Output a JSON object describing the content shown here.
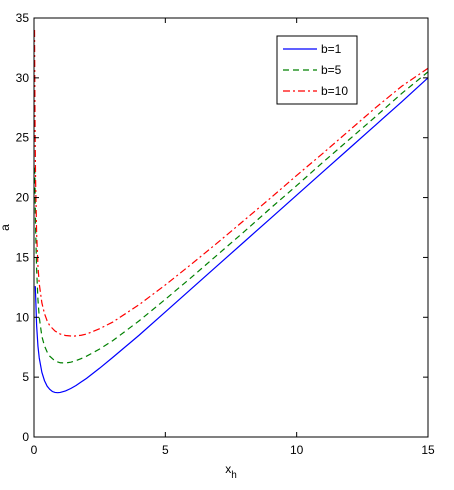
{
  "chart_data": {
    "type": "line",
    "xlabel": "x",
    "xlabel_sub": "h",
    "ylabel": "a",
    "xlim": [
      0,
      15
    ],
    "ylim": [
      0,
      35
    ],
    "xticks": [
      0,
      5,
      10,
      15
    ],
    "xtick_labels": [
      "0",
      "5",
      "10",
      "15"
    ],
    "yticks": [
      0,
      5,
      10,
      15,
      20,
      25,
      30,
      35
    ],
    "ytick_labels": [
      "0",
      "5",
      "10",
      "15",
      "20",
      "25",
      "30",
      "35"
    ],
    "grid": false,
    "legend_position": "top-right",
    "series": [
      {
        "name": "b=1",
        "color": "#0000ff",
        "dash": "solid",
        "x": [
          0.05,
          0.1,
          0.15,
          0.2,
          0.3,
          0.4,
          0.5,
          0.6,
          0.7,
          0.8,
          0.9,
          1.0,
          1.2,
          1.4,
          1.6,
          1.8,
          2,
          2.5,
          3,
          4,
          5,
          6,
          7,
          8,
          9,
          10,
          11,
          12,
          13,
          14,
          15
        ],
        "y": [
          12.6,
          9.3,
          7.6,
          6.6,
          5.4,
          4.7,
          4.25,
          3.98,
          3.8,
          3.72,
          3.7,
          3.72,
          3.85,
          4.05,
          4.3,
          4.6,
          4.9,
          5.75,
          6.65,
          8.5,
          10.45,
          12.4,
          14.35,
          16.3,
          18.25,
          20.2,
          22.15,
          24.1,
          26.05,
          28.0,
          30.0
        ]
      },
      {
        "name": "b=5",
        "color": "#008000",
        "dash": "dashed",
        "x": [
          0.03,
          0.06,
          0.1,
          0.15,
          0.2,
          0.3,
          0.4,
          0.5,
          0.6,
          0.8,
          1.0,
          1.2,
          1.4,
          1.6,
          1.8,
          2,
          2.5,
          3,
          4,
          5,
          6,
          7,
          8,
          9,
          10,
          11,
          12,
          13,
          14,
          15
        ],
        "y": [
          22.5,
          17.5,
          14.0,
          11.5,
          10.0,
          8.4,
          7.6,
          7.1,
          6.75,
          6.35,
          6.2,
          6.18,
          6.25,
          6.38,
          6.55,
          6.75,
          7.35,
          8.05,
          9.7,
          11.5,
          13.35,
          15.25,
          17.15,
          19.1,
          21.0,
          22.95,
          24.85,
          26.75,
          28.7,
          30.5
        ]
      },
      {
        "name": "b=10",
        "color": "#ff0000",
        "dash": "dashdot",
        "x": [
          0.02,
          0.04,
          0.06,
          0.1,
          0.15,
          0.2,
          0.3,
          0.4,
          0.5,
          0.6,
          0.8,
          1.0,
          1.2,
          1.5,
          1.8,
          2,
          2.5,
          3,
          4,
          5,
          6,
          7,
          8,
          9,
          10,
          11,
          12,
          13,
          14,
          15
        ],
        "y": [
          34.0,
          26.0,
          21.5,
          17.0,
          14.3,
          12.8,
          11.2,
          10.3,
          9.7,
          9.3,
          8.85,
          8.6,
          8.48,
          8.42,
          8.5,
          8.6,
          9.05,
          9.6,
          11.05,
          12.7,
          14.45,
          16.25,
          18.1,
          19.95,
          21.85,
          23.7,
          25.6,
          27.5,
          29.3,
          30.8
        ]
      }
    ]
  }
}
